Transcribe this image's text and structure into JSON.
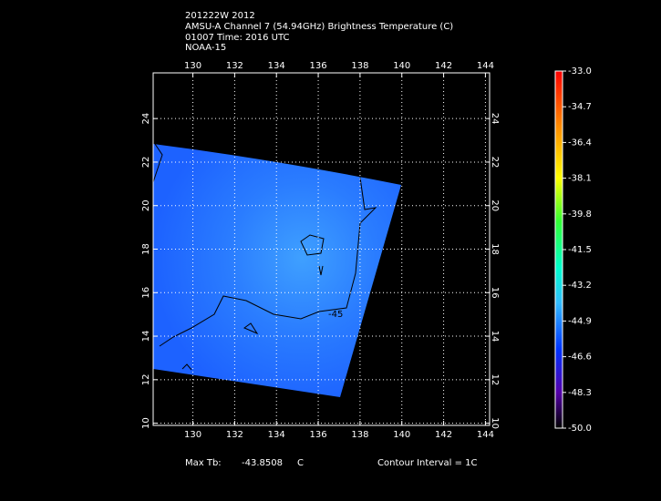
{
  "header": {
    "lines": [
      "201222W 2012",
      "AMSU-A Channel 7 (54.94GHz) Brightness Temperature (C)",
      "01007 Time: 2016 UTC",
      "NOAA-15"
    ]
  },
  "map": {
    "xlim": [
      128.1,
      144.2
    ],
    "ylim": [
      9.9,
      26.1
    ],
    "xticks": [
      130,
      132,
      134,
      136,
      138,
      140,
      142,
      144
    ],
    "yticks": [
      10,
      12,
      14,
      16,
      18,
      20,
      22,
      24
    ],
    "contour_label": "-45"
  },
  "colorbar": {
    "clim": [
      -50,
      -33
    ],
    "ticks": [
      {
        "value": -33,
        "label": "-33.0"
      },
      {
        "value": -34.7,
        "label": "-34.7"
      },
      {
        "value": -36.4,
        "label": "-36.4"
      },
      {
        "value": -38.1,
        "label": "-38.1"
      },
      {
        "value": -39.8,
        "label": "-39.8"
      },
      {
        "value": -41.5,
        "label": "-41.5"
      },
      {
        "value": -43.2,
        "label": "-43.2"
      },
      {
        "value": -44.9,
        "label": "-44.9"
      },
      {
        "value": -46.6,
        "label": "-46.6"
      },
      {
        "value": -48.3,
        "label": "-48.3"
      },
      {
        "value": -50,
        "label": "-50.0"
      }
    ]
  },
  "footer": {
    "max_label": "Max Tb:",
    "max_value": "-43.8508",
    "unit": "C",
    "contour_interval": "Contour Interval = 1C"
  }
}
